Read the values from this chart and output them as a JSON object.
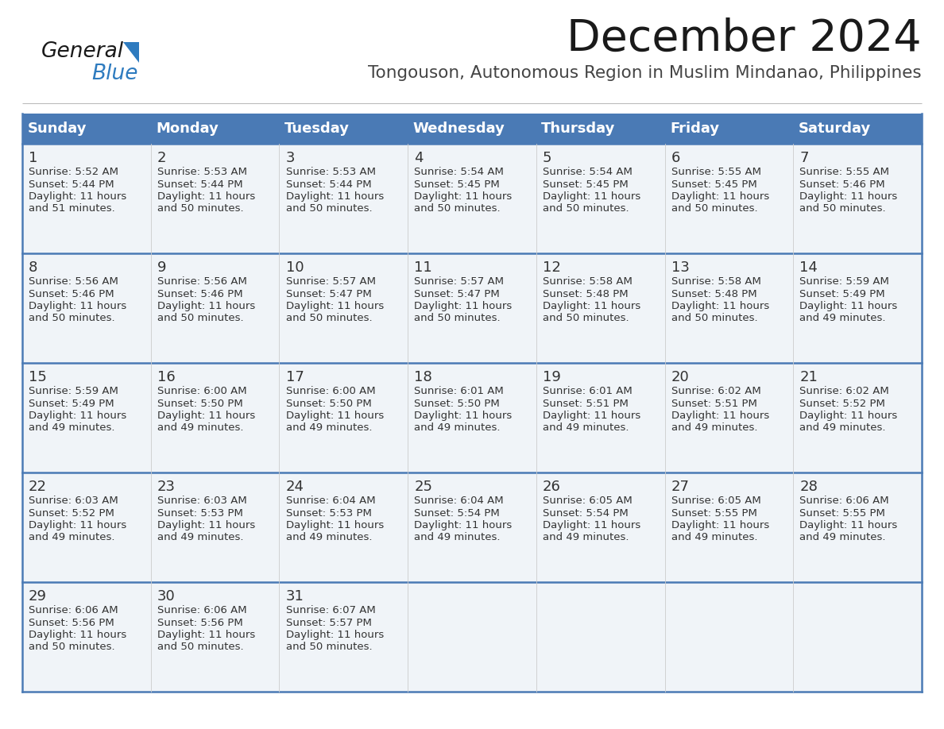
{
  "title": "December 2024",
  "subtitle": "Tongouson, Autonomous Region in Muslim Mindanao, Philippines",
  "header_color": "#4a7ab5",
  "header_text_color": "#FFFFFF",
  "cell_bg_color": "#f0f4f8",
  "border_color": "#4a7ab5",
  "row_divider_color": "#4a7ab5",
  "day_headers": [
    "Sunday",
    "Monday",
    "Tuesday",
    "Wednesday",
    "Thursday",
    "Friday",
    "Saturday"
  ],
  "title_color": "#1a1a1a",
  "subtitle_color": "#444444",
  "day_num_color": "#333333",
  "cell_text_color": "#333333",
  "logo_general_color": "#1a1a1a",
  "logo_blue_color": "#2e7bbf",
  "logo_triangle_color": "#2e7bbf",
  "days": [
    {
      "day": 1,
      "col": 0,
      "row": 0,
      "sunrise": "5:52 AM",
      "sunset": "5:44 PM",
      "daylight_hours": 11,
      "daylight_minutes": 51
    },
    {
      "day": 2,
      "col": 1,
      "row": 0,
      "sunrise": "5:53 AM",
      "sunset": "5:44 PM",
      "daylight_hours": 11,
      "daylight_minutes": 50
    },
    {
      "day": 3,
      "col": 2,
      "row": 0,
      "sunrise": "5:53 AM",
      "sunset": "5:44 PM",
      "daylight_hours": 11,
      "daylight_minutes": 50
    },
    {
      "day": 4,
      "col": 3,
      "row": 0,
      "sunrise": "5:54 AM",
      "sunset": "5:45 PM",
      "daylight_hours": 11,
      "daylight_minutes": 50
    },
    {
      "day": 5,
      "col": 4,
      "row": 0,
      "sunrise": "5:54 AM",
      "sunset": "5:45 PM",
      "daylight_hours": 11,
      "daylight_minutes": 50
    },
    {
      "day": 6,
      "col": 5,
      "row": 0,
      "sunrise": "5:55 AM",
      "sunset": "5:45 PM",
      "daylight_hours": 11,
      "daylight_minutes": 50
    },
    {
      "day": 7,
      "col": 6,
      "row": 0,
      "sunrise": "5:55 AM",
      "sunset": "5:46 PM",
      "daylight_hours": 11,
      "daylight_minutes": 50
    },
    {
      "day": 8,
      "col": 0,
      "row": 1,
      "sunrise": "5:56 AM",
      "sunset": "5:46 PM",
      "daylight_hours": 11,
      "daylight_minutes": 50
    },
    {
      "day": 9,
      "col": 1,
      "row": 1,
      "sunrise": "5:56 AM",
      "sunset": "5:46 PM",
      "daylight_hours": 11,
      "daylight_minutes": 50
    },
    {
      "day": 10,
      "col": 2,
      "row": 1,
      "sunrise": "5:57 AM",
      "sunset": "5:47 PM",
      "daylight_hours": 11,
      "daylight_minutes": 50
    },
    {
      "day": 11,
      "col": 3,
      "row": 1,
      "sunrise": "5:57 AM",
      "sunset": "5:47 PM",
      "daylight_hours": 11,
      "daylight_minutes": 50
    },
    {
      "day": 12,
      "col": 4,
      "row": 1,
      "sunrise": "5:58 AM",
      "sunset": "5:48 PM",
      "daylight_hours": 11,
      "daylight_minutes": 50
    },
    {
      "day": 13,
      "col": 5,
      "row": 1,
      "sunrise": "5:58 AM",
      "sunset": "5:48 PM",
      "daylight_hours": 11,
      "daylight_minutes": 50
    },
    {
      "day": 14,
      "col": 6,
      "row": 1,
      "sunrise": "5:59 AM",
      "sunset": "5:49 PM",
      "daylight_hours": 11,
      "daylight_minutes": 49
    },
    {
      "day": 15,
      "col": 0,
      "row": 2,
      "sunrise": "5:59 AM",
      "sunset": "5:49 PM",
      "daylight_hours": 11,
      "daylight_minutes": 49
    },
    {
      "day": 16,
      "col": 1,
      "row": 2,
      "sunrise": "6:00 AM",
      "sunset": "5:50 PM",
      "daylight_hours": 11,
      "daylight_minutes": 49
    },
    {
      "day": 17,
      "col": 2,
      "row": 2,
      "sunrise": "6:00 AM",
      "sunset": "5:50 PM",
      "daylight_hours": 11,
      "daylight_minutes": 49
    },
    {
      "day": 18,
      "col": 3,
      "row": 2,
      "sunrise": "6:01 AM",
      "sunset": "5:50 PM",
      "daylight_hours": 11,
      "daylight_minutes": 49
    },
    {
      "day": 19,
      "col": 4,
      "row": 2,
      "sunrise": "6:01 AM",
      "sunset": "5:51 PM",
      "daylight_hours": 11,
      "daylight_minutes": 49
    },
    {
      "day": 20,
      "col": 5,
      "row": 2,
      "sunrise": "6:02 AM",
      "sunset": "5:51 PM",
      "daylight_hours": 11,
      "daylight_minutes": 49
    },
    {
      "day": 21,
      "col": 6,
      "row": 2,
      "sunrise": "6:02 AM",
      "sunset": "5:52 PM",
      "daylight_hours": 11,
      "daylight_minutes": 49
    },
    {
      "day": 22,
      "col": 0,
      "row": 3,
      "sunrise": "6:03 AM",
      "sunset": "5:52 PM",
      "daylight_hours": 11,
      "daylight_minutes": 49
    },
    {
      "day": 23,
      "col": 1,
      "row": 3,
      "sunrise": "6:03 AM",
      "sunset": "5:53 PM",
      "daylight_hours": 11,
      "daylight_minutes": 49
    },
    {
      "day": 24,
      "col": 2,
      "row": 3,
      "sunrise": "6:04 AM",
      "sunset": "5:53 PM",
      "daylight_hours": 11,
      "daylight_minutes": 49
    },
    {
      "day": 25,
      "col": 3,
      "row": 3,
      "sunrise": "6:04 AM",
      "sunset": "5:54 PM",
      "daylight_hours": 11,
      "daylight_minutes": 49
    },
    {
      "day": 26,
      "col": 4,
      "row": 3,
      "sunrise": "6:05 AM",
      "sunset": "5:54 PM",
      "daylight_hours": 11,
      "daylight_minutes": 49
    },
    {
      "day": 27,
      "col": 5,
      "row": 3,
      "sunrise": "6:05 AM",
      "sunset": "5:55 PM",
      "daylight_hours": 11,
      "daylight_minutes": 49
    },
    {
      "day": 28,
      "col": 6,
      "row": 3,
      "sunrise": "6:06 AM",
      "sunset": "5:55 PM",
      "daylight_hours": 11,
      "daylight_minutes": 49
    },
    {
      "day": 29,
      "col": 0,
      "row": 4,
      "sunrise": "6:06 AM",
      "sunset": "5:56 PM",
      "daylight_hours": 11,
      "daylight_minutes": 50
    },
    {
      "day": 30,
      "col": 1,
      "row": 4,
      "sunrise": "6:06 AM",
      "sunset": "5:56 PM",
      "daylight_hours": 11,
      "daylight_minutes": 50
    },
    {
      "day": 31,
      "col": 2,
      "row": 4,
      "sunrise": "6:07 AM",
      "sunset": "5:57 PM",
      "daylight_hours": 11,
      "daylight_minutes": 50
    }
  ]
}
